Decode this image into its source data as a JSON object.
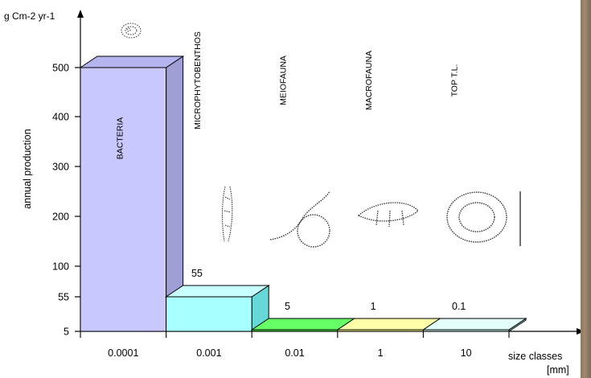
{
  "chart_data": {
    "type": "bar",
    "style": "3d",
    "categories": [
      "BACTERIA",
      "MICROPHYTOBENTHOS",
      "MEIOFAUNA",
      "MACROFAUNA",
      "TOP T.L."
    ],
    "values": [
      500,
      55,
      5,
      1,
      0.1
    ],
    "value_labels": [
      "",
      "55",
      "5",
      "1",
      "0.1"
    ],
    "bar_colors": [
      "#c8c8ff",
      "#a8ffff",
      "#44ee44",
      "#ffff88",
      "#ccfff8"
    ],
    "side_colors": [
      "#9f9fd6",
      "#66d8d8",
      "#2ba52b",
      "#cccc55",
      "#99ddd4"
    ],
    "top_colors": [
      "#b4b4ee",
      "#c8ffff",
      "#66ff66",
      "#ffffaa",
      "#e2fffb"
    ],
    "x_tick_labels": [
      "0.0001",
      "0.001",
      "0.01",
      "1",
      "10"
    ],
    "y_ticks": [
      5,
      55,
      100,
      200,
      300,
      400,
      500
    ],
    "y_unit": "g Cm-2 yr-1",
    "ylabel": "annual production",
    "xlabel": "size classes",
    "xunit": "[mm]",
    "ylim": [
      0,
      560
    ],
    "grid": false
  }
}
